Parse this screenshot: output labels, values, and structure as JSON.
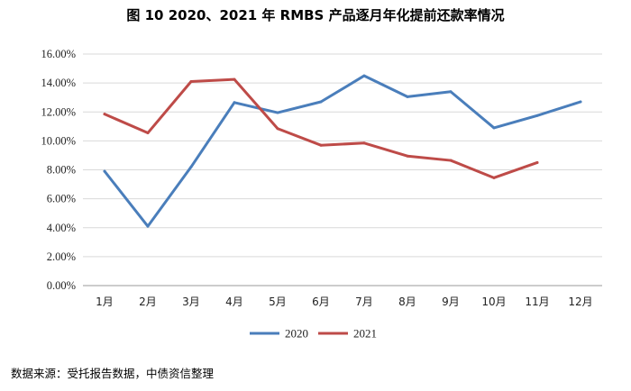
{
  "chart_data": {
    "type": "line",
    "title": "图 10 2020、2021 年 RMBS 产品逐月年化提前还款率情况",
    "categories": [
      "1月",
      "2月",
      "3月",
      "4月",
      "5月",
      "6月",
      "7月",
      "8月",
      "9月",
      "10月",
      "11月",
      "12月"
    ],
    "series": [
      {
        "name": "2020",
        "color": "#4A7EBB",
        "values": [
          7.9,
          4.1,
          8.2,
          12.65,
          11.95,
          12.7,
          14.5,
          13.05,
          13.4,
          10.9,
          11.75,
          12.7
        ]
      },
      {
        "name": "2021",
        "color": "#BE4B48",
        "values": [
          11.85,
          10.55,
          14.1,
          14.25,
          10.85,
          9.7,
          9.85,
          8.95,
          8.65,
          7.45,
          8.5,
          null
        ]
      }
    ],
    "yticks": [
      "0.00%",
      "2.00%",
      "4.00%",
      "6.00%",
      "8.00%",
      "10.00%",
      "12.00%",
      "14.00%",
      "16.00%"
    ],
    "ylim": [
      0,
      16
    ],
    "grid": true,
    "legend_position": "bottom"
  },
  "source": "数据来源：受托报告数据，中债资信整理"
}
